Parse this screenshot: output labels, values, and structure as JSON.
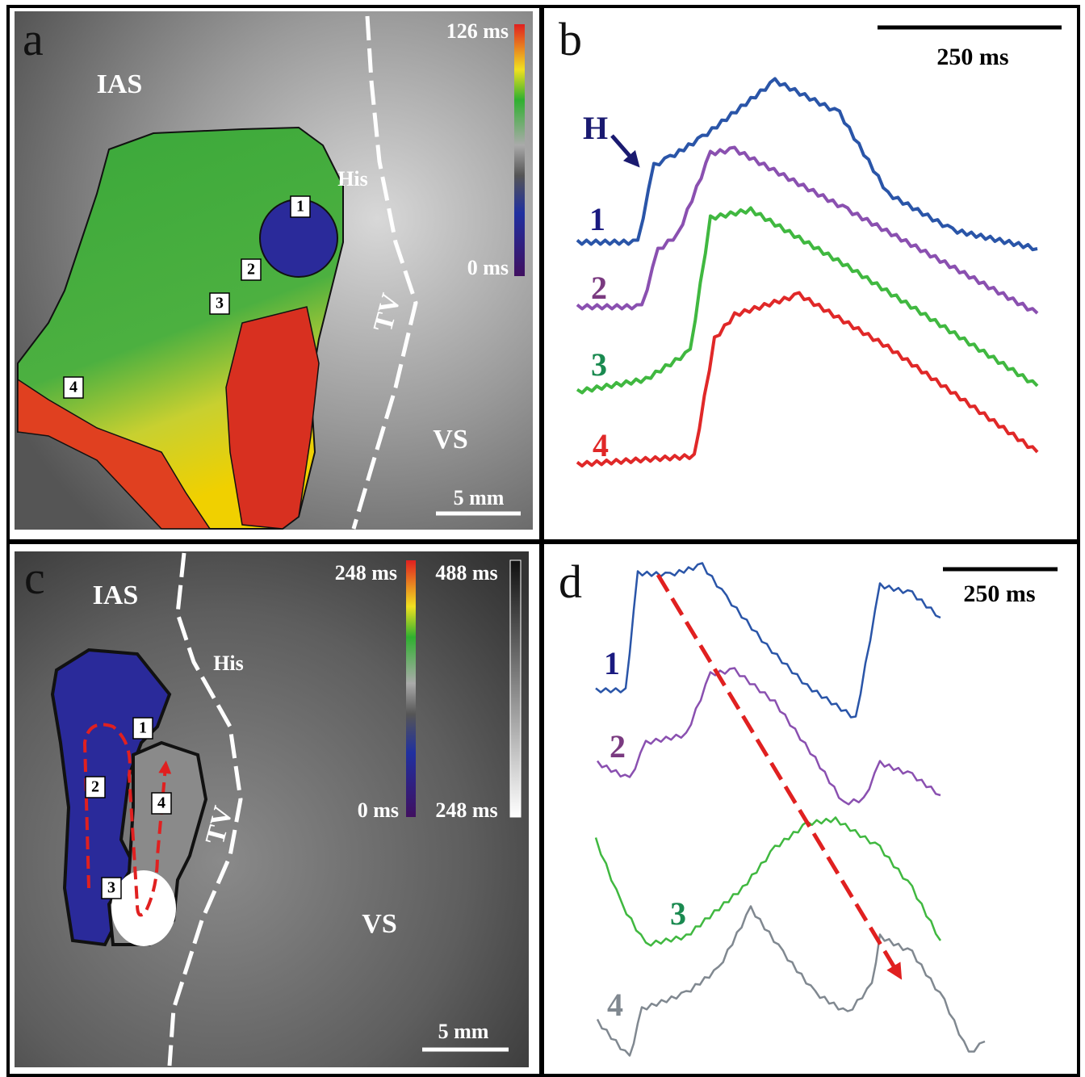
{
  "panels": [
    {
      "letter": "a",
      "region_labels": [
        "IAS",
        "His",
        "TV",
        "VS"
      ],
      "colorbar": {
        "max": "126 ms",
        "min": "0 ms"
      },
      "markers": [
        "1",
        "2",
        "3",
        "4"
      ],
      "scale_bar": "5 mm"
    },
    {
      "letter": "b",
      "scale_bar": "250 ms",
      "arrow_label": "H",
      "trace_labels": [
        "1",
        "2",
        "3",
        "4"
      ]
    },
    {
      "letter": "c",
      "region_labels": [
        "IAS",
        "His",
        "TV",
        "VS"
      ],
      "colorbar_color": {
        "max": "248 ms",
        "min": "0 ms"
      },
      "colorbar_gray": {
        "max": "488 ms",
        "min": "248 ms"
      },
      "markers": [
        "1",
        "2",
        "3",
        "4"
      ],
      "scale_bar": "5 mm"
    },
    {
      "letter": "d",
      "scale_bar": "250 ms",
      "trace_labels": [
        "1",
        "2",
        "3",
        "4"
      ]
    }
  ]
}
